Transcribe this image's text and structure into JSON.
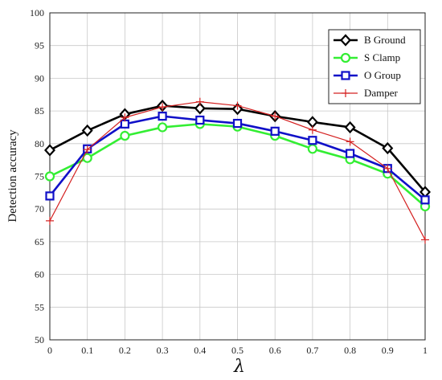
{
  "chart_data": {
    "type": "line",
    "xlabel": "λ",
    "ylabel": "Detection accuracy",
    "xlim": [
      0,
      1
    ],
    "ylim": [
      50,
      100
    ],
    "x": [
      0,
      0.1,
      0.2,
      0.3,
      0.4,
      0.5,
      0.6,
      0.7,
      0.8,
      0.9,
      1
    ],
    "x_ticks": [
      "0",
      "0.1",
      "0.2",
      "0.3",
      "0.4",
      "0.5",
      "0.6",
      "0.7",
      "0.8",
      "0.9",
      "1"
    ],
    "y_ticks": [
      "50",
      "55",
      "60",
      "65",
      "70",
      "75",
      "80",
      "85",
      "90",
      "95",
      "100"
    ],
    "grid": true,
    "legend_position": "top-right",
    "series": [
      {
        "name": "B Ground",
        "color": "#000000",
        "marker": "diamond",
        "values": [
          79,
          82,
          84.5,
          85.8,
          85.4,
          85.3,
          84.2,
          83.3,
          82.5,
          79.3,
          72.6
        ]
      },
      {
        "name": "S Clamp",
        "color": "#33ee33",
        "marker": "circle",
        "values": [
          75,
          77.8,
          81.2,
          82.5,
          83,
          82.6,
          81.2,
          79.2,
          77.6,
          75.4,
          70.4
        ]
      },
      {
        "name": "O Group",
        "color": "#1010c8",
        "marker": "square",
        "values": [
          72,
          79.2,
          83,
          84.2,
          83.6,
          83.1,
          81.9,
          80.5,
          78.5,
          76.2,
          71.4
        ]
      },
      {
        "name": "Damper",
        "color": "#d42020",
        "marker": "plus",
        "values": [
          68.2,
          79.1,
          84,
          85.6,
          86.4,
          85.8,
          84.2,
          82.1,
          80.3,
          76.2,
          65.3
        ]
      }
    ]
  }
}
